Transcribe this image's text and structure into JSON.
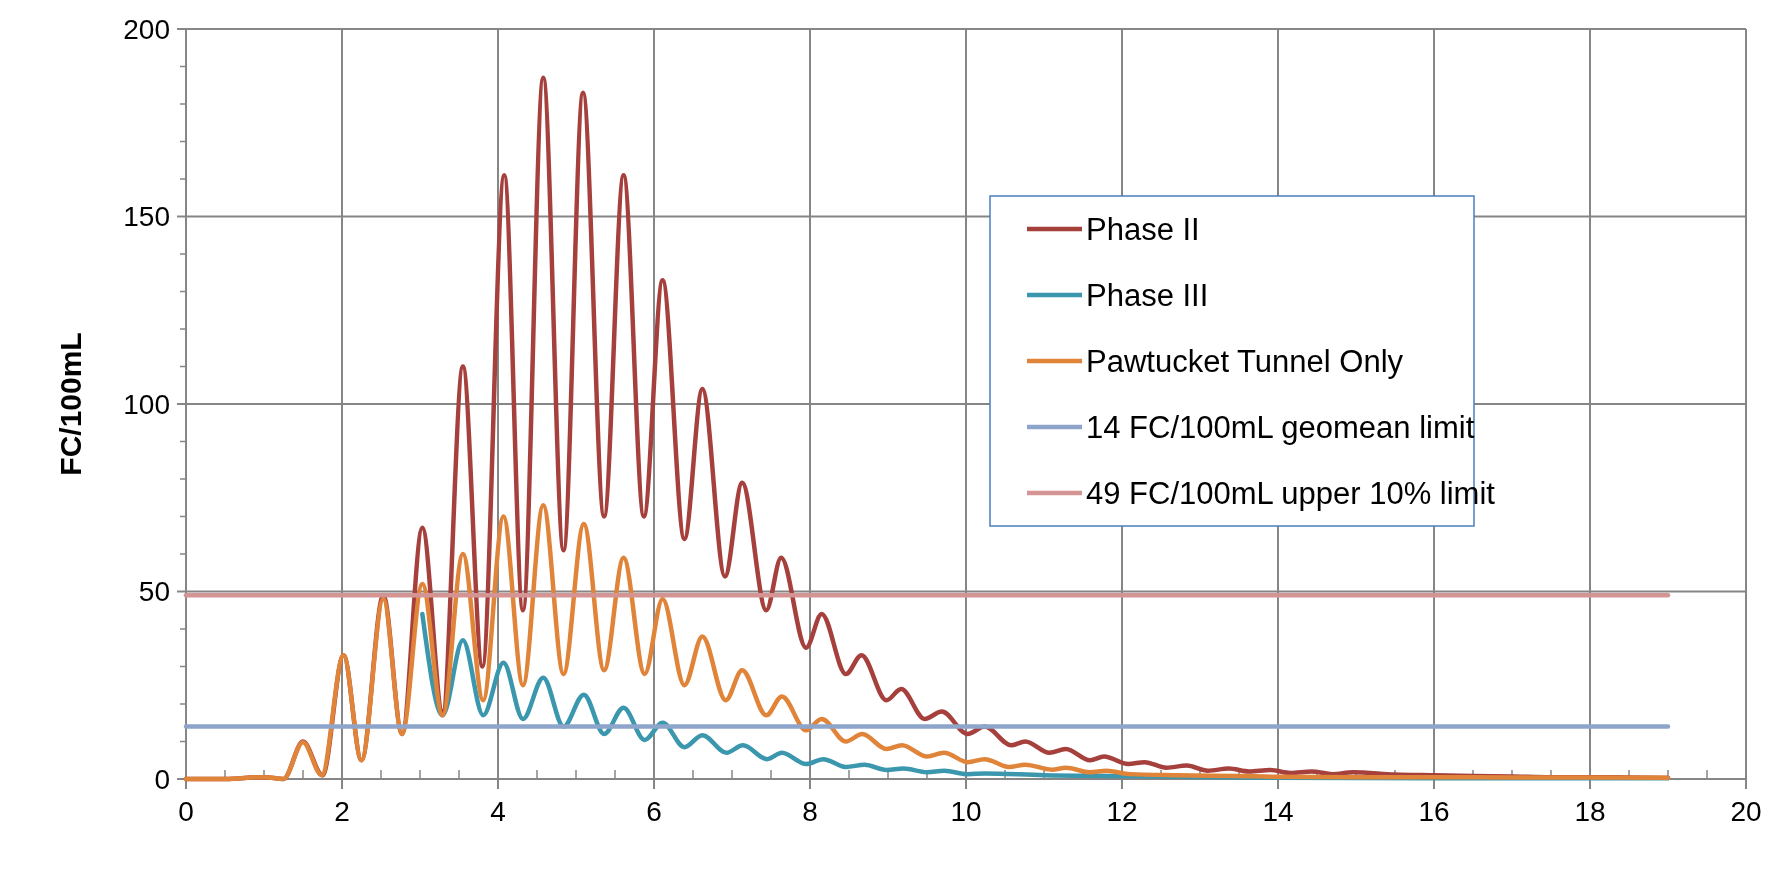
{
  "chart_data": {
    "type": "line",
    "ylabel": "FC/100mL",
    "xlim": [
      0,
      20
    ],
    "xticks": [
      0,
      {
        "value": 0.5,
        "label": null
      },
      {
        "value": 1,
        "label": null
      },
      {
        "value": 1.5,
        "label": null
      },
      2,
      {
        "value": 2.5,
        "label": null
      },
      {
        "value": 3,
        "label": null
      },
      {
        "value": 3.5,
        "label": null
      },
      4,
      {
        "value": 4.5,
        "label": null
      },
      {
        "value": 5,
        "label": null
      },
      {
        "value": 5.5,
        "label": null
      },
      6,
      {
        "value": 6.5,
        "label": null
      },
      {
        "value": 7,
        "label": null
      },
      {
        "value": 7.5,
        "label": null
      },
      8,
      {
        "value": 8.5,
        "label": null
      },
      {
        "value": 9,
        "label": null
      },
      {
        "value": 9.5,
        "label": null
      },
      10,
      {
        "value": 10.5,
        "label": null
      },
      {
        "value": 11,
        "label": null
      },
      {
        "value": 11.5,
        "label": null
      },
      12,
      {
        "value": 12.5,
        "label": null
      },
      {
        "value": 13,
        "label": null
      },
      {
        "value": 13.5,
        "label": null
      },
      14,
      {
        "value": 14.5,
        "label": null
      },
      {
        "value": 15,
        "label": null
      },
      {
        "value": 15.5,
        "label": null
      },
      16,
      {
        "value": 16.5,
        "label": null
      },
      {
        "value": 17,
        "label": null
      },
      {
        "value": 17.5,
        "label": null
      },
      18,
      {
        "value": 18.5,
        "label": null
      },
      {
        "value": 19,
        "label": null
      },
      {
        "value": 19.5,
        "label": null
      },
      20
    ],
    "ylim": [
      0,
      200
    ],
    "yticks": [
      0,
      {
        "value": 10,
        "label": null
      },
      {
        "value": 20,
        "label": null
      },
      {
        "value": 30,
        "label": null
      },
      {
        "value": 40,
        "label": null
      },
      50,
      {
        "value": 60,
        "label": null
      },
      {
        "value": 70,
        "label": null
      },
      {
        "value": 80,
        "label": null
      },
      {
        "value": 90,
        "label": null
      },
      100,
      {
        "value": 110,
        "label": null
      },
      {
        "value": 120,
        "label": null
      },
      {
        "value": 130,
        "label": null
      },
      {
        "value": 140,
        "label": null
      },
      150,
      {
        "value": 160,
        "label": null
      },
      {
        "value": 170,
        "label": null
      },
      {
        "value": 180,
        "label": null
      },
      {
        "value": 190,
        "label": null
      },
      200
    ],
    "grid": true,
    "legend": "right",
    "marker": "none",
    "line_style": "solid",
    "series": [
      {
        "name": "Phase II",
        "color": "#a5403d",
        "x": [
          0,
          0.5,
          1,
          1.25,
          1.5,
          1.75,
          2.02,
          2.25,
          2.53,
          2.77,
          3.03,
          3.29,
          3.55,
          3.8,
          4.08,
          4.32,
          4.58,
          4.84,
          5.09,
          5.36,
          5.61,
          5.87,
          6.11,
          6.39,
          6.62,
          6.91,
          7.13,
          7.44,
          7.63,
          7.95,
          8.15,
          8.46,
          8.66,
          8.98,
          9.17,
          9.47,
          9.69,
          10.02,
          10.24,
          10.58,
          10.76,
          11.07,
          11.28,
          11.59,
          11.77,
          12.08,
          12.29,
          12.57,
          12.83,
          13.1,
          13.37,
          13.63,
          13.9,
          14.16,
          14.43,
          14.7,
          14.96,
          15.5,
          16,
          16.5,
          17,
          17.5,
          18,
          18.5,
          19
        ],
        "values": [
          0,
          0,
          0.5,
          0,
          10,
          1,
          33,
          5,
          49,
          12,
          67,
          18,
          110,
          30,
          161,
          45,
          187,
          61,
          183,
          70,
          161,
          70,
          133,
          64,
          104,
          54,
          79,
          45,
          59,
          35,
          44,
          28,
          33,
          21,
          24,
          16,
          18,
          12,
          14,
          9,
          10,
          7,
          8,
          5,
          6,
          4,
          4.5,
          3,
          3.6,
          2.2,
          2.8,
          2,
          2.4,
          1.6,
          2,
          1.3,
          1.8,
          1.2,
          1,
          0.8,
          0.7,
          0.5,
          0.5,
          0.4,
          0.3
        ]
      },
      {
        "name": "Phase III",
        "color": "#3a97ae",
        "x": [
          3.03,
          3.29,
          3.55,
          3.81,
          4.07,
          4.32,
          4.58,
          4.84,
          5.1,
          5.36,
          5.61,
          5.88,
          6.11,
          6.39,
          6.62,
          6.93,
          7.14,
          7.45,
          7.64,
          7.95,
          8.17,
          8.46,
          8.7,
          8.98,
          9.2,
          9.5,
          9.72,
          10.02,
          10.24,
          11,
          12,
          13,
          14,
          16,
          19
        ],
        "values": [
          44,
          17,
          37,
          17,
          31,
          16,
          27,
          14,
          22.5,
          12,
          19,
          10.4,
          15,
          8.5,
          11.7,
          7,
          9,
          5.3,
          7,
          4,
          5.3,
          3.2,
          3.8,
          2.4,
          2.8,
          1.8,
          2.2,
          1.3,
          1.5,
          1,
          0.8,
          0.5,
          0.3,
          0.2,
          0.2
        ]
      },
      {
        "name": "Pawtucket Tunnel Only",
        "color": "#e0843a",
        "x": [
          0,
          0.5,
          1,
          1.25,
          1.5,
          1.74,
          2.02,
          2.25,
          2.53,
          2.77,
          3.03,
          3.29,
          3.55,
          3.81,
          4.07,
          4.32,
          4.58,
          4.84,
          5.1,
          5.36,
          5.61,
          5.88,
          6.11,
          6.39,
          6.62,
          6.92,
          7.13,
          7.44,
          7.64,
          7.95,
          8.15,
          8.46,
          8.67,
          8.98,
          9.18,
          9.5,
          9.72,
          10.02,
          10.24,
          10.55,
          10.76,
          11.1,
          11.28,
          11.59,
          11.8,
          12.1,
          12.7,
          13.5,
          14,
          15,
          16,
          17,
          18,
          19
        ],
        "values": [
          0,
          0,
          0.5,
          0,
          9.8,
          1,
          33,
          5,
          48,
          12,
          52,
          17,
          60,
          21,
          70,
          25,
          73,
          28,
          68,
          29,
          59,
          28,
          48,
          25,
          38,
          21,
          29,
          17,
          22,
          13,
          16,
          10,
          12,
          8,
          9,
          6,
          7,
          4.5,
          5.3,
          3.2,
          3.8,
          2.5,
          3,
          1.8,
          2.2,
          1.3,
          1,
          0.8,
          0.6,
          0.5,
          0.5,
          0.4,
          0.4,
          0.3
        ]
      },
      {
        "name": "14 FC/100mL geomean limit",
        "color": "#8ea5cb",
        "x": [
          0,
          19
        ],
        "values": [
          14,
          14
        ]
      },
      {
        "name": "49 FC/100mL upper 10% limit",
        "color": "#d49493",
        "x": [
          0,
          19
        ],
        "values": [
          49,
          49
        ]
      }
    ]
  }
}
